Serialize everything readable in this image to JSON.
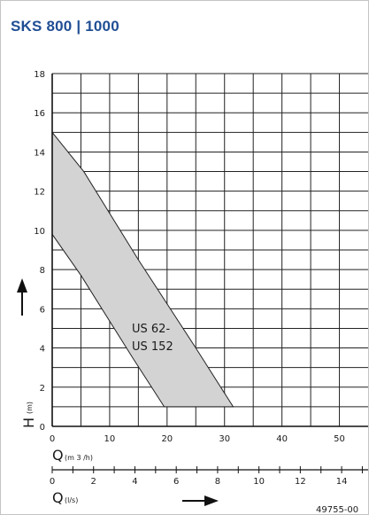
{
  "header": {
    "title": "SKS 800 | 1000"
  },
  "chart_data": {
    "type": "area",
    "title": "SKS 800 | 1000",
    "x_primary": {
      "label_symbol": "Q",
      "label_unit": "(m 3 /h)",
      "range": [
        0,
        55
      ],
      "ticks": [
        0,
        10,
        20,
        30,
        40,
        50
      ]
    },
    "x_secondary": {
      "label_symbol": "Q",
      "label_unit": "(l/s)",
      "range": [
        0,
        15.28
      ],
      "ticks": [
        0,
        2,
        4,
        6,
        8,
        10,
        12,
        14
      ]
    },
    "y": {
      "label_symbol": "H",
      "label_unit": "(m)",
      "range": [
        0,
        18
      ],
      "ticks": [
        0,
        2,
        4,
        6,
        8,
        10,
        12,
        14,
        16,
        18
      ]
    },
    "grid": true,
    "region": {
      "name_lines": [
        "US 62-",
        "US 152"
      ],
      "fill_color": "#d3d3d3",
      "outline_color": "#222222",
      "upper_boundary": [
        {
          "x": 0,
          "y": 15
        },
        {
          "x": 5.5,
          "y": 13
        },
        {
          "x": 15,
          "y": 8.5
        },
        {
          "x": 25,
          "y": 4
        },
        {
          "x": 31.5,
          "y": 1
        }
      ],
      "lower_boundary": [
        {
          "x": 0,
          "y": 9.8
        },
        {
          "x": 5,
          "y": 7.7
        },
        {
          "x": 14,
          "y": 3.5
        },
        {
          "x": 19.5,
          "y": 1
        }
      ]
    },
    "reference": "49755-00"
  }
}
